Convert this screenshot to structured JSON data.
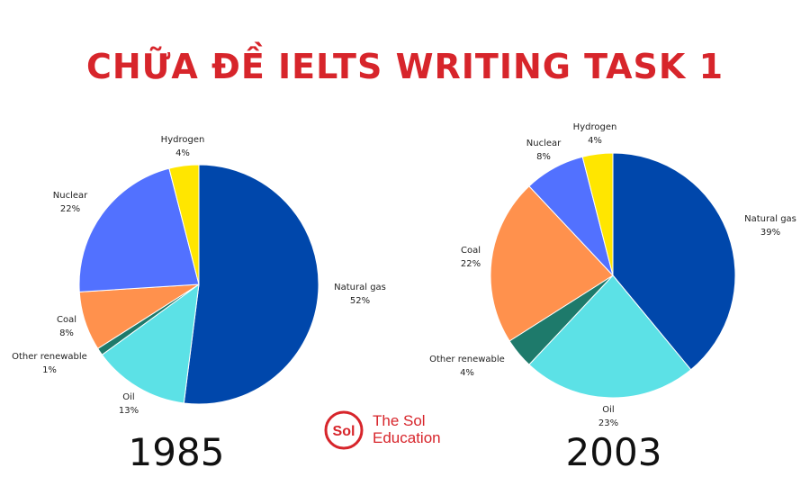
{
  "header": {
    "title": "CHỮA ĐỀ IELTS WRITING TASK 1"
  },
  "logo": {
    "line1": "The Sol",
    "line2": "Education",
    "mark": "Sol"
  },
  "colors": {
    "Natural gas": "#0047ab",
    "Oil": "#5ce1e6",
    "Other renewable": "#1e7a6b",
    "Coal": "#ff914d",
    "Nuclear": "#5271ff",
    "Hydrogen": "#ffe600",
    "title": "#d7252b"
  },
  "chart_data": [
    {
      "type": "pie",
      "title": "1985",
      "slices": [
        {
          "label": "Natural gas",
          "value": 52,
          "text": "52%"
        },
        {
          "label": "Oil",
          "value": 13,
          "text": "13%"
        },
        {
          "label": "Other renewable",
          "value": 1,
          "text": "1%"
        },
        {
          "label": "Coal",
          "value": 8,
          "text": "8%"
        },
        {
          "label": "Nuclear",
          "value": 22,
          "text": "22%"
        },
        {
          "label": "Hydrogen",
          "value": 4,
          "text": "4%"
        }
      ]
    },
    {
      "type": "pie",
      "title": "2003",
      "slices": [
        {
          "label": "Natural gas",
          "value": 39,
          "text": "39%"
        },
        {
          "label": "Oil",
          "value": 23,
          "text": "23%"
        },
        {
          "label": "Other renewable",
          "value": 4,
          "text": "4%"
        },
        {
          "label": "Coal",
          "value": 22,
          "text": "22%"
        },
        {
          "label": "Nuclear",
          "value": 8,
          "text": "8%"
        },
        {
          "label": "Hydrogen",
          "value": 4,
          "text": "4%"
        }
      ]
    }
  ]
}
